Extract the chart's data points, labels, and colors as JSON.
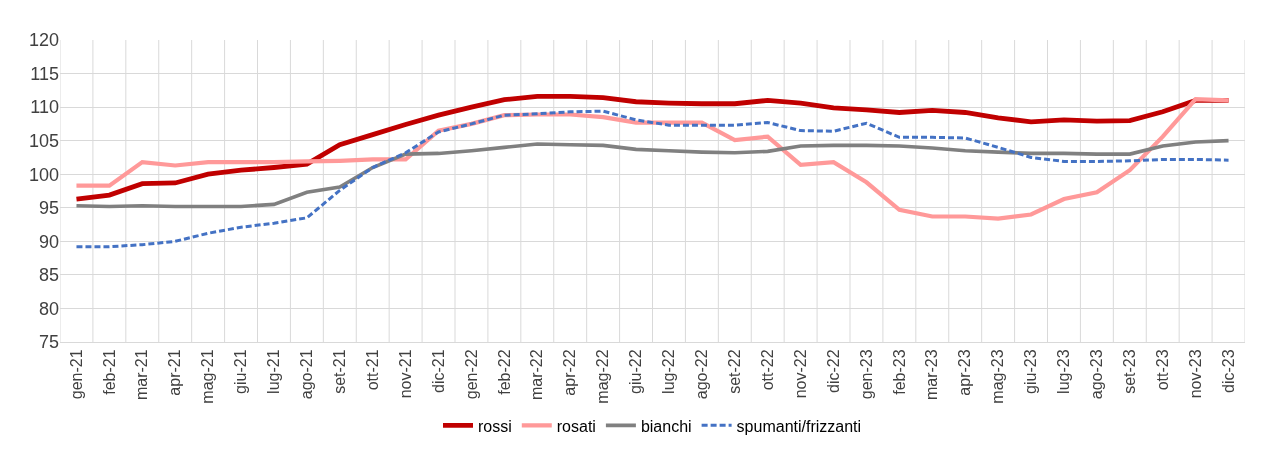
{
  "chart_data": {
    "type": "line",
    "categories": [
      "gen-21",
      "feb-21",
      "mar-21",
      "apr-21",
      "mag-21",
      "giu-21",
      "lug-21",
      "ago-21",
      "set-21",
      "ott-21",
      "nov-21",
      "dic-21",
      "gen-22",
      "feb-22",
      "mar-22",
      "apr-22",
      "mag-22",
      "giu-22",
      "lug-22",
      "ago-22",
      "set-22",
      "ott-22",
      "nov-22",
      "dic-22",
      "gen-23",
      "feb-23",
      "mar-23",
      "apr-23",
      "mag-23",
      "giu-23",
      "lug-23",
      "ago-23",
      "set-23",
      "ott-23",
      "nov-23",
      "dic-23"
    ],
    "series": [
      {
        "name": "rossi",
        "color": "#c00000",
        "line_style": "solid",
        "values": [
          96.3,
          96.9,
          98.6,
          98.7,
          100.0,
          100.6,
          101.0,
          101.5,
          104.4,
          105.9,
          107.4,
          108.8,
          110.0,
          111.1,
          111.6,
          111.6,
          111.4,
          110.8,
          110.6,
          110.5,
          110.5,
          111.0,
          110.6,
          109.9,
          109.6,
          109.2,
          109.5,
          109.2,
          108.4,
          107.8,
          108.1,
          107.9,
          108.0,
          109.3,
          111.0,
          111.0
        ]
      },
      {
        "name": "rosati",
        "color": "#ff9999",
        "line_style": "solid",
        "values": [
          98.3,
          98.3,
          101.8,
          101.3,
          101.8,
          101.8,
          101.8,
          101.9,
          102.0,
          102.2,
          102.2,
          106.5,
          107.5,
          108.8,
          108.9,
          108.9,
          108.5,
          107.7,
          107.7,
          107.7,
          105.1,
          105.6,
          101.4,
          101.8,
          98.8,
          94.7,
          93.7,
          93.7,
          93.4,
          94.0,
          96.3,
          97.3,
          100.6,
          105.6,
          111.2,
          111.0
        ]
      },
      {
        "name": "bianchi",
        "color": "#808080",
        "line_style": "solid",
        "values": [
          95.3,
          95.2,
          95.3,
          95.2,
          95.2,
          95.2,
          95.5,
          97.3,
          98.1,
          101.0,
          103.0,
          103.1,
          103.5,
          104.0,
          104.5,
          104.4,
          104.3,
          103.7,
          103.5,
          103.3,
          103.2,
          103.4,
          104.2,
          104.3,
          104.3,
          104.2,
          103.9,
          103.5,
          103.3,
          103.1,
          103.1,
          103.0,
          103.0,
          104.2,
          104.8,
          105.0
        ]
      },
      {
        "name": "spumanti/frizzanti",
        "color": "#4472c4",
        "line_style": "dashed",
        "values": [
          89.2,
          89.2,
          89.5,
          90.0,
          91.2,
          92.1,
          92.7,
          93.5,
          97.6,
          101.0,
          103.2,
          106.3,
          107.5,
          108.8,
          109.0,
          109.3,
          109.4,
          108.1,
          107.3,
          107.3,
          107.3,
          107.7,
          106.5,
          106.4,
          107.6,
          105.5,
          105.5,
          105.4,
          104.0,
          102.5,
          101.9,
          101.9,
          102.0,
          102.2,
          102.2,
          102.1
        ]
      }
    ],
    "ylim": [
      75,
      120
    ],
    "yticks": [
      75,
      80,
      85,
      90,
      95,
      100,
      105,
      110,
      115,
      120
    ],
    "grid": true,
    "legend": "bottom",
    "marker": "none"
  }
}
